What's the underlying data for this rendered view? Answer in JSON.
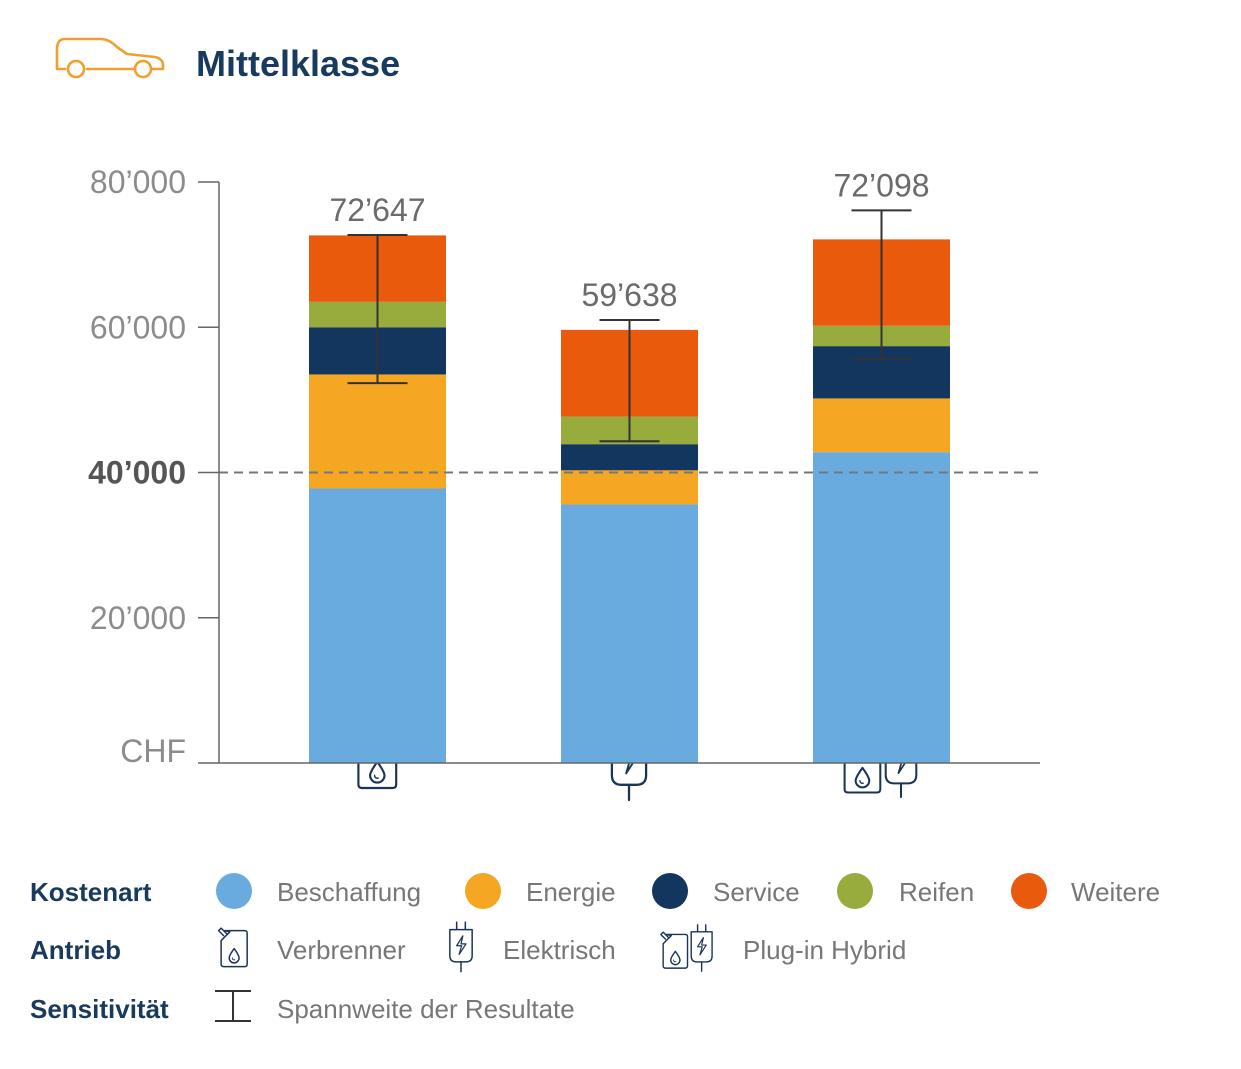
{
  "header": {
    "title": "Mittelklasse",
    "icon": "car-icon",
    "icon_color": "#F0A030"
  },
  "colors": {
    "title": "#173A5E",
    "axis_text": "#8C8C8C",
    "axis_line": "#666666",
    "dashed": "#777777",
    "total_label": "#6B6B6B",
    "error_bar": "#333333",
    "icon_stroke": "#1B3358",
    "legend_text": "#777777"
  },
  "chart_data": {
    "type": "bar",
    "stacked": true,
    "title": "Mittelklasse",
    "ylabel": "CHF",
    "ylim": [
      0,
      80000
    ],
    "yticks": [
      {
        "value": 20000,
        "label": "20’000"
      },
      {
        "value": 40000,
        "label": "40’000",
        "emphasis": true
      },
      {
        "value": 60000,
        "label": "60’000"
      },
      {
        "value": 80000,
        "label": "80’000"
      }
    ],
    "reference_line": 40000,
    "categories": [
      "Verbrenner",
      "Elektrisch",
      "Plug-in Hybrid"
    ],
    "category_icons": [
      "fuel-can-icon",
      "plug-icon",
      "fuel-can-plug-icon"
    ],
    "series": [
      {
        "name": "Beschaffung",
        "color": "#69ABDF",
        "values": [
          37800,
          35600,
          42800
        ]
      },
      {
        "name": "Energie",
        "color": "#F5A623",
        "values": [
          15700,
          4700,
          7400
        ]
      },
      {
        "name": "Service",
        "color": "#13365E",
        "values": [
          6500,
          3600,
          7200
        ]
      },
      {
        "name": "Reifen",
        "color": "#97AC3C",
        "values": [
          3500,
          3800,
          2800
        ]
      },
      {
        "name": "Weitere",
        "color": "#E95A0C",
        "values": [
          9147,
          11938,
          11898
        ]
      }
    ],
    "totals": [
      72647,
      59638,
      72098
    ],
    "total_labels": [
      "72’647",
      "59’638",
      "72’098"
    ],
    "ranges": [
      [
        52300,
        72700
      ],
      [
        44300,
        61000
      ],
      [
        55600,
        76100
      ]
    ]
  },
  "legend": {
    "kostenart": {
      "label": "Kostenart",
      "items": [
        {
          "label": "Beschaffung",
          "color": "#69ABDF"
        },
        {
          "label": "Energie",
          "color": "#F5A623"
        },
        {
          "label": "Service",
          "color": "#13365E"
        },
        {
          "label": "Reifen",
          "color": "#97AC3C"
        },
        {
          "label": "Weitere",
          "color": "#E95A0C"
        }
      ]
    },
    "antrieb": {
      "label": "Antrieb",
      "items": [
        {
          "label": "Verbrenner",
          "icon": "fuel-can-icon"
        },
        {
          "label": "Elektrisch",
          "icon": "plug-icon"
        },
        {
          "label": "Plug-in Hybrid",
          "icon": "fuel-can-plug-icon"
        }
      ]
    },
    "sensitivitaet": {
      "label": "Sensitivität",
      "items": [
        {
          "label": "Spannweite der Resultate",
          "icon": "range-bar-icon"
        }
      ]
    }
  }
}
